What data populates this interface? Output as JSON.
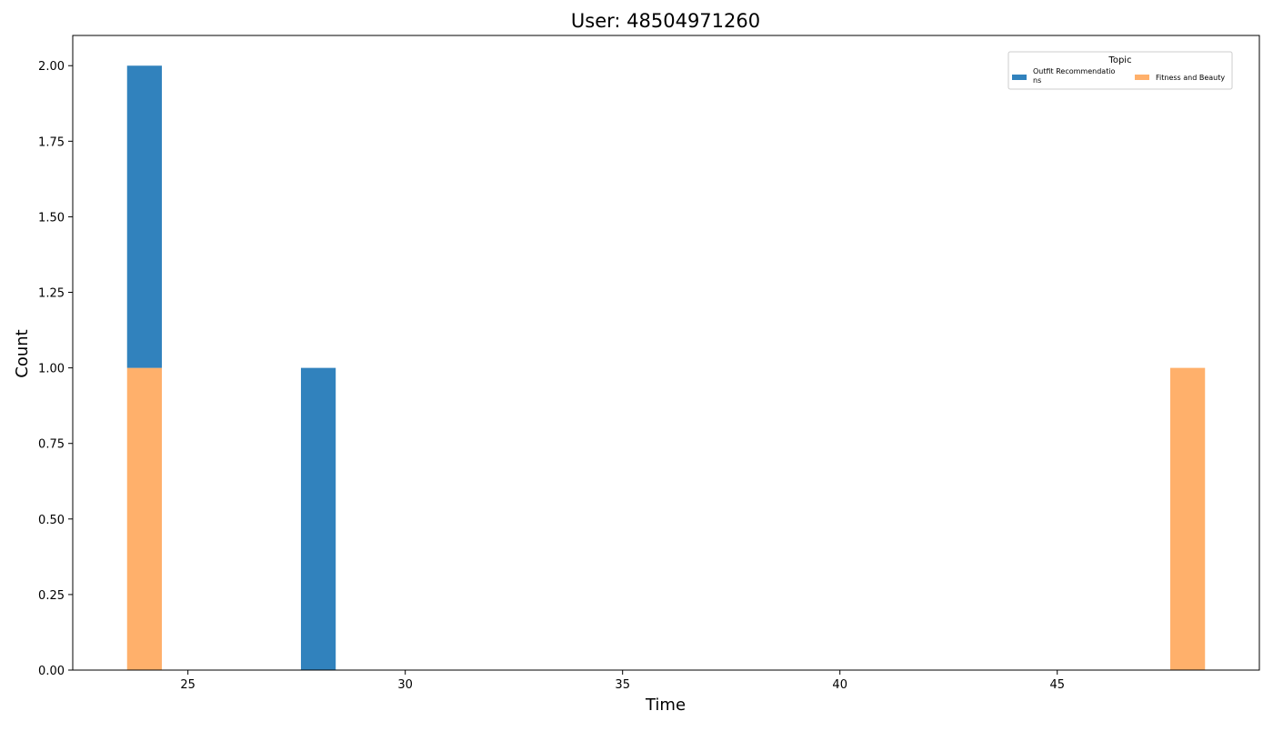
{
  "chart_data": {
    "type": "bar",
    "stacked": true,
    "title": "User: 48504971260",
    "xlabel": "Time",
    "ylabel": "Count",
    "xlim": [
      22.35,
      49.65
    ],
    "ylim": [
      0,
      2.1
    ],
    "x_ticks": [
      25,
      30,
      35,
      40,
      45
    ],
    "y_ticks": [
      "0.00",
      "0.25",
      "0.50",
      "0.75",
      "1.00",
      "1.25",
      "1.50",
      "1.75",
      "2.00"
    ],
    "bin_width": 0.8,
    "x": [
      24,
      28,
      48
    ],
    "series": [
      {
        "name": "Fitness and Beauty",
        "color": "#ffb06b",
        "values": [
          1,
          0,
          1
        ]
      },
      {
        "name": "Outfit Recommendations",
        "color": "#3182bd",
        "values": [
          1,
          1,
          0
        ]
      }
    ],
    "legend": {
      "title": "Topic",
      "position": "top-right",
      "entries": [
        {
          "label_line1": "Outfit Recommendatio",
          "label_line2": "ns",
          "color": "#3182bd"
        },
        {
          "label_line1": "Fitness and Beauty",
          "label_line2": "",
          "color": "#ffb06b"
        }
      ]
    },
    "grid": false
  }
}
